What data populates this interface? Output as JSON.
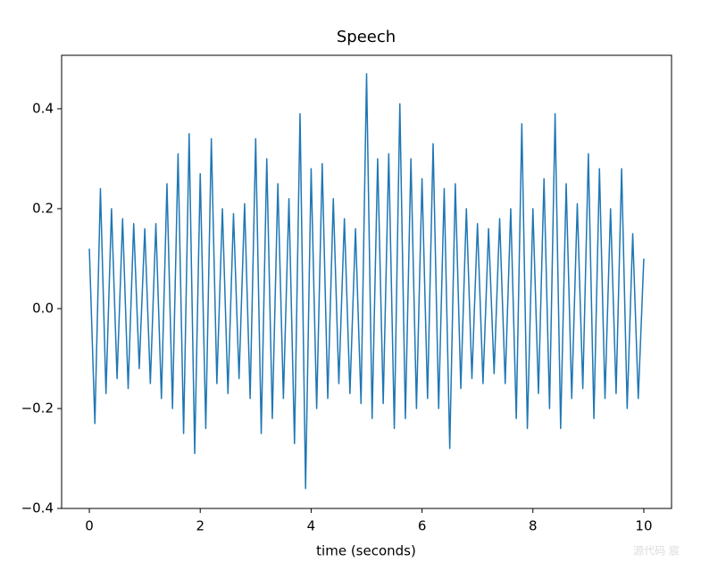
{
  "chart_data": {
    "type": "line",
    "title": "Speech",
    "x_label": "time (seconds)",
    "x": [
      0,
      0.1,
      0.2,
      0.3,
      0.4,
      0.5,
      0.6,
      0.7,
      0.8,
      0.9,
      1.0,
      1.1,
      1.2,
      1.3,
      1.4,
      1.5,
      1.6,
      1.7,
      1.8,
      1.9,
      2.0,
      2.1,
      2.2,
      2.3,
      2.4,
      2.5,
      2.6,
      2.7,
      2.8,
      2.9,
      3.0,
      3.1,
      3.2,
      3.3,
      3.4,
      3.5,
      3.6,
      3.7,
      3.8,
      3.9,
      4.0,
      4.1,
      4.2,
      4.3,
      4.4,
      4.5,
      4.6,
      4.7,
      4.8,
      4.9,
      5.0,
      5.1,
      5.2,
      5.3,
      5.4,
      5.5,
      5.6,
      5.7,
      5.8,
      5.9,
      6.0,
      6.1,
      6.2,
      6.3,
      6.4,
      6.5,
      6.6,
      6.7,
      6.8,
      6.9,
      7.0,
      7.1,
      7.2,
      7.3,
      7.4,
      7.5,
      7.6,
      7.7,
      7.8,
      7.9,
      8.0,
      8.1,
      8.2,
      8.3,
      8.4,
      8.5,
      8.6,
      8.7,
      8.8,
      8.9,
      9.0,
      9.1,
      9.2,
      9.3,
      9.4,
      9.5,
      9.6,
      9.7,
      9.8,
      9.9,
      10.0
    ],
    "series": [
      {
        "color": "#1f77b4",
        "values": [
          0.12,
          -0.23,
          0.24,
          -0.17,
          0.2,
          -0.14,
          0.18,
          -0.16,
          0.17,
          -0.12,
          0.16,
          -0.15,
          0.17,
          -0.18,
          0.25,
          -0.2,
          0.31,
          -0.25,
          0.35,
          -0.29,
          0.27,
          -0.24,
          0.34,
          -0.15,
          0.2,
          -0.17,
          0.19,
          -0.14,
          0.21,
          -0.18,
          0.34,
          -0.25,
          0.3,
          -0.22,
          0.25,
          -0.18,
          0.22,
          -0.27,
          0.39,
          -0.36,
          0.28,
          -0.2,
          0.29,
          -0.18,
          0.22,
          -0.15,
          0.18,
          -0.17,
          0.16,
          -0.19,
          0.47,
          -0.22,
          0.3,
          -0.19,
          0.31,
          -0.24,
          0.41,
          -0.22,
          0.3,
          -0.2,
          0.26,
          -0.18,
          0.33,
          -0.2,
          0.24,
          -0.28,
          0.25,
          -0.16,
          0.2,
          -0.14,
          0.17,
          -0.15,
          0.16,
          -0.13,
          0.18,
          -0.15,
          0.2,
          -0.22,
          0.37,
          -0.24,
          0.2,
          -0.17,
          0.26,
          -0.2,
          0.39,
          -0.24,
          0.25,
          -0.18,
          0.21,
          -0.16,
          0.31,
          -0.22,
          0.28,
          -0.18,
          0.2,
          -0.17,
          0.28,
          -0.2,
          0.15,
          -0.18,
          0.1
        ]
      }
    ],
    "xlim": [
      -0.5,
      10.5
    ],
    "ylim": [
      -0.4,
      0.507
    ],
    "xticks": [
      0,
      2,
      4,
      6,
      8,
      10
    ],
    "yticks": [
      {
        "value": -0.4,
        "label": "−0.4"
      },
      {
        "value": -0.2,
        "label": "−0.2"
      },
      {
        "value": 0,
        "label": "0.0"
      },
      0.2,
      0.4
    ],
    "grid": false,
    "watermark": "源代码 宸"
  }
}
